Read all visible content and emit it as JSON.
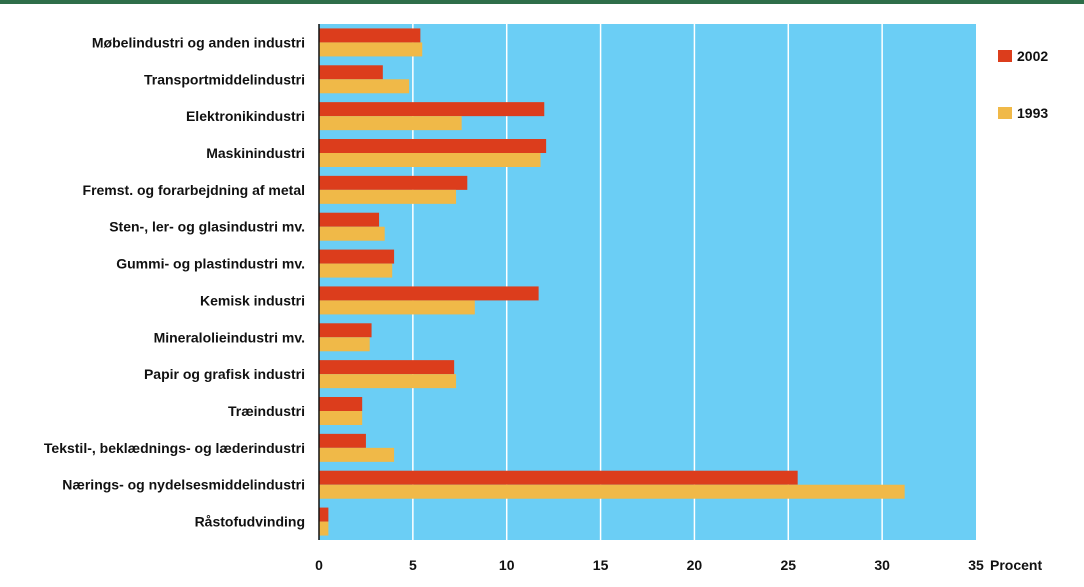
{
  "chart_data": {
    "type": "bar",
    "orientation": "horizontal",
    "categories": [
      "Møbelindustri og anden industri",
      "Transportmiddelindustri",
      "Elektronikindustri",
      "Maskinindustri",
      "Fremst. og forarbejdning af metal",
      "Sten-, ler- og glasindustri mv.",
      "Gummi- og plastindustri mv.",
      "Kemisk industri",
      "Mineralolieindustri mv.",
      "Papir og grafisk industri",
      "Træindustri",
      "Tekstil-, beklædnings- og læderindustri",
      "Nærings- og nydelsesmiddelindustri",
      "Råstofudvinding"
    ],
    "series": [
      {
        "name": "2002",
        "color": "#dc3d1c",
        "values": [
          5.4,
          3.4,
          12.0,
          12.1,
          7.9,
          3.2,
          4.0,
          11.7,
          2.8,
          7.2,
          2.3,
          2.5,
          25.5,
          0.5
        ]
      },
      {
        "name": "1993",
        "color": "#f0b948",
        "values": [
          5.5,
          4.8,
          7.6,
          11.8,
          7.3,
          3.5,
          3.9,
          8.3,
          2.7,
          7.3,
          2.3,
          4.0,
          31.2,
          0.5
        ]
      }
    ],
    "xlim": [
      0,
      35
    ],
    "xticks": [
      0,
      5,
      10,
      15,
      20,
      25,
      30,
      35
    ],
    "xlabel": "Procent",
    "ylabel": "",
    "title": "",
    "grid": "vertical",
    "legend_position": "right",
    "background_color": "#6bcef5",
    "grid_color": "#ffffff"
  }
}
